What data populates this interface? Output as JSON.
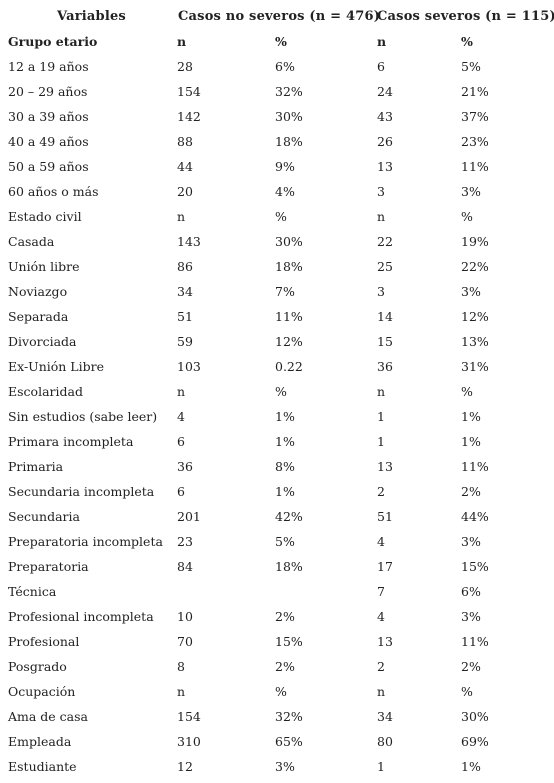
{
  "header": {
    "variables": "Variables",
    "no_severos": "Casos no severos (n = 476)",
    "severos": "Casos severos (n = 115)"
  },
  "rows": [
    {
      "label": "Grupo etario",
      "n1": "n",
      "p1": "%",
      "n2": "n",
      "p2": "%",
      "sub": true
    },
    {
      "label": "12 a 19 años",
      "n1": "28",
      "p1": "6%",
      "n2": "6",
      "p2": "5%"
    },
    {
      "label": "20 – 29 años",
      "n1": "154",
      "p1": "32%",
      "n2": "24",
      "p2": "21%"
    },
    {
      "label": "30 a 39 años",
      "n1": "142",
      "p1": "30%",
      "n2": "43",
      "p2": "37%"
    },
    {
      "label": "40 a 49 años",
      "n1": "88",
      "p1": "18%",
      "n2": "26",
      "p2": "23%"
    },
    {
      "label": "50 a 59 años",
      "n1": "44",
      "p1": "9%",
      "n2": "13",
      "p2": "11%"
    },
    {
      "label": "60 años o más",
      "n1": "20",
      "p1": "4%",
      "n2": "3",
      "p2": "3%"
    },
    {
      "label": "Estado civil",
      "n1": "n",
      "p1": "%",
      "n2": "n",
      "p2": "%"
    },
    {
      "label": "Casada",
      "n1": "143",
      "p1": "30%",
      "n2": "22",
      "p2": "19%"
    },
    {
      "label": "Unión libre",
      "n1": "86",
      "p1": "18%",
      "n2": "25",
      "p2": "22%"
    },
    {
      "label": "Noviazgo",
      "n1": "34",
      "p1": "7%",
      "n2": "3",
      "p2": "3%"
    },
    {
      "label": "Separada",
      "n1": "51",
      "p1": "11%",
      "n2": "14",
      "p2": "12%"
    },
    {
      "label": "Divorciada",
      "n1": "59",
      "p1": "12%",
      "n2": "15",
      "p2": "13%"
    },
    {
      "label": "Ex-Unión Libre",
      "n1": "103",
      "p1": "0.22",
      "n2": "36",
      "p2": "31%"
    },
    {
      "label": "Escolaridad",
      "n1": "n",
      "p1": "%",
      "n2": "n",
      "p2": "%"
    },
    {
      "label": "Sin estudios (sabe leer)",
      "n1": "4",
      "p1": "1%",
      "n2": "1",
      "p2": "1%"
    },
    {
      "label": "Primara incompleta",
      "n1": "6",
      "p1": "1%",
      "n2": "1",
      "p2": "1%"
    },
    {
      "label": "Primaria",
      "n1": "36",
      "p1": "8%",
      "n2": "13",
      "p2": "11%"
    },
    {
      "label": "Secundaria incompleta",
      "n1": "6",
      "p1": "1%",
      "n2": "2",
      "p2": "2%"
    },
    {
      "label": "Secundaria",
      "n1": "201",
      "p1": "42%",
      "n2": "51",
      "p2": "44%"
    },
    {
      "label": "Preparatoria incompleta",
      "n1": "23",
      "p1": "5%",
      "n2": "4",
      "p2": "3%"
    },
    {
      "label": "Preparatoria",
      "n1": "84",
      "p1": "18%",
      "n2": "17",
      "p2": "15%"
    },
    {
      "label": "Técnica",
      "n1": "",
      "p1": "",
      "n2": "7",
      "p2": "6%"
    },
    {
      "label": "Profesional incompleta",
      "n1": "10",
      "p1": "2%",
      "n2": "4",
      "p2": "3%"
    },
    {
      "label": "Profesional",
      "n1": "70",
      "p1": "15%",
      "n2": "13",
      "p2": "11%"
    },
    {
      "label": "Posgrado",
      "n1": "8",
      "p1": "2%",
      "n2": "2",
      "p2": "2%"
    },
    {
      "label": "Ocupación",
      "n1": "n",
      "p1": "%",
      "n2": "n",
      "p2": "%"
    },
    {
      "label": "Ama de casa",
      "n1": "154",
      "p1": "32%",
      "n2": "34",
      "p2": "30%"
    },
    {
      "label": "Empleada",
      "n1": "310",
      "p1": "65%",
      "n2": "80",
      "p2": "69%"
    },
    {
      "label": "Estudiante",
      "n1": "12",
      "p1": "3%",
      "n2": "1",
      "p2": "1%"
    }
  ]
}
